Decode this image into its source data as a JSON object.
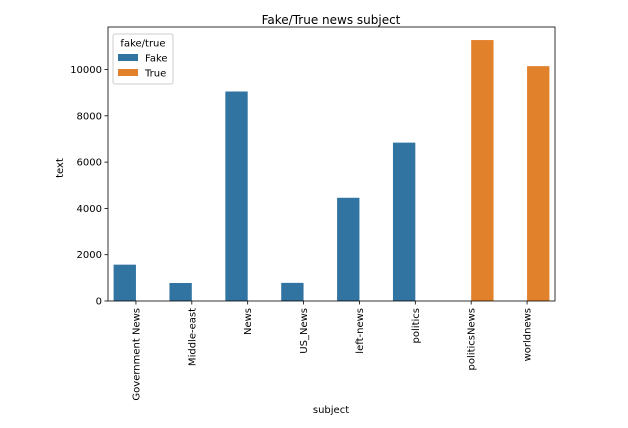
{
  "chart_data": {
    "type": "bar",
    "title": "Fake/True news subject",
    "xlabel": "subject",
    "ylabel": "text",
    "categories": [
      "Government News",
      "Middle-east",
      "News",
      "US_News",
      "left-news",
      "politics",
      "politicsNews",
      "worldnews"
    ],
    "series": [
      {
        "name": "Fake",
        "color": "#3274a1",
        "values": [
          1570,
          778,
          9050,
          783,
          4459,
          6841,
          null,
          null
        ]
      },
      {
        "name": "True",
        "color": "#e1812c",
        "values": [
          null,
          null,
          null,
          null,
          null,
          null,
          11272,
          10145
        ]
      }
    ],
    "ylim": [
      0,
      11836
    ],
    "yticks": [
      0,
      2000,
      4000,
      6000,
      8000,
      10000
    ],
    "grid": false,
    "legend": {
      "title": "fake/true",
      "placement": "top-left"
    }
  }
}
